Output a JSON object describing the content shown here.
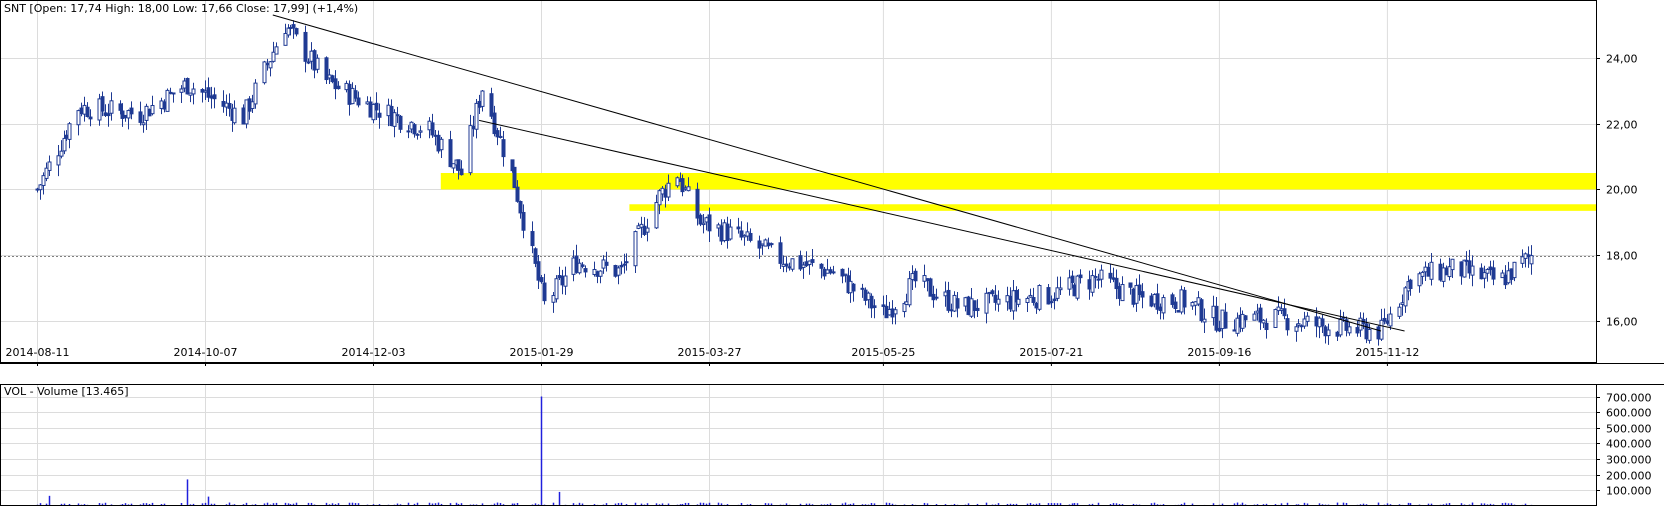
{
  "price_panel": {
    "header": "SNT [Open: 17,74  High: 18,00  Low: 17,66  Close: 17,99] (+1,4%)"
  },
  "volume_panel": {
    "header": "VOL - Volume [13.465]"
  },
  "colors": {
    "candle": "#1f3a93",
    "volume": "#2020dd",
    "zone": "#ffff00",
    "trendline": "#000000",
    "grid": "#dcdcdc",
    "last_close_line": "#808080"
  },
  "chart_data": [
    {
      "type": "candlestick",
      "symbol": "SNT",
      "x_tick_labels": [
        "2014-08-11",
        "2014-10-07",
        "2014-12-03",
        "2015-01-29",
        "2015-03-27",
        "2015-05-25",
        "2015-07-21",
        "2015-09-16",
        "2015-11-12"
      ],
      "y_tick_labels": [
        "16,00",
        "18,00",
        "20,00",
        "22,00",
        "24,00"
      ],
      "ylim": [
        15.0,
        26.0
      ],
      "grid": true,
      "last_close": 17.99,
      "last_bar": {
        "open": 17.74,
        "high": 18.0,
        "low": 17.66,
        "close": 17.99,
        "change": "+1,4%"
      },
      "approx_close_path": [
        {
          "date": "2014-08-11",
          "close": 20.0
        },
        {
          "date": "2014-08-25",
          "close": 22.5
        },
        {
          "date": "2014-09-15",
          "close": 22.3
        },
        {
          "date": "2014-10-01",
          "close": 23.2
        },
        {
          "date": "2014-10-20",
          "close": 22.2
        },
        {
          "date": "2014-11-03",
          "close": 25.0
        },
        {
          "date": "2014-11-17",
          "close": 23.3
        },
        {
          "date": "2014-12-03",
          "close": 22.5
        },
        {
          "date": "2014-12-22",
          "close": 21.8
        },
        {
          "date": "2015-01-02",
          "close": 20.5
        },
        {
          "date": "2015-01-09",
          "close": 23.1
        },
        {
          "date": "2015-01-20",
          "close": 20.2
        },
        {
          "date": "2015-01-30",
          "close": 16.5
        },
        {
          "date": "2015-02-10",
          "close": 17.8
        },
        {
          "date": "2015-02-25",
          "close": 17.5
        },
        {
          "date": "2015-03-10",
          "close": 19.8
        },
        {
          "date": "2015-03-16",
          "close": 20.5
        },
        {
          "date": "2015-03-24",
          "close": 19.0
        },
        {
          "date": "2015-04-05",
          "close": 18.6
        },
        {
          "date": "2015-04-20",
          "close": 17.9
        },
        {
          "date": "2015-05-08",
          "close": 17.5
        },
        {
          "date": "2015-05-25",
          "close": 16.2
        },
        {
          "date": "2015-06-05",
          "close": 17.2
        },
        {
          "date": "2015-06-20",
          "close": 16.4
        },
        {
          "date": "2015-07-05",
          "close": 16.6
        },
        {
          "date": "2015-07-21",
          "close": 16.8
        },
        {
          "date": "2015-08-05",
          "close": 17.3
        },
        {
          "date": "2015-08-20",
          "close": 16.7
        },
        {
          "date": "2015-09-05",
          "close": 16.6
        },
        {
          "date": "2015-09-16",
          "close": 16.0
        },
        {
          "date": "2015-10-05",
          "close": 16.1
        },
        {
          "date": "2015-10-25",
          "close": 15.8
        },
        {
          "date": "2015-11-10",
          "close": 15.7
        },
        {
          "date": "2015-11-20",
          "close": 17.3
        },
        {
          "date": "2015-12-05",
          "close": 17.6
        },
        {
          "date": "2015-12-20",
          "close": 17.2
        },
        {
          "date": "2015-12-31",
          "close": 17.99
        }
      ],
      "trendlines": [
        {
          "from": {
            "date": "2014-10-30",
            "price": 25.3
          },
          "to": {
            "date": "2015-11-10",
            "price": 15.7
          }
        },
        {
          "from": {
            "date": "2015-01-08",
            "price": 22.1
          },
          "to": {
            "date": "2015-11-18",
            "price": 15.7
          }
        }
      ],
      "zones": [
        {
          "from_date": "2014-12-26",
          "price_low": 20.0,
          "price_high": 20.5
        },
        {
          "from_date": "2015-02-28",
          "price_low": 19.35,
          "price_high": 19.55
        }
      ]
    },
    {
      "type": "bar",
      "name": "Volume",
      "y_tick_labels": [
        "100.000",
        "200.000",
        "300.000",
        "400.000",
        "500.000",
        "600.000",
        "700.000"
      ],
      "ylim": [
        0,
        780000
      ],
      "grid": true,
      "notable_spikes": [
        {
          "date": "2014-08-15",
          "value": 65000
        },
        {
          "date": "2014-10-01",
          "value": 170000
        },
        {
          "date": "2014-10-08",
          "value": 60000
        },
        {
          "date": "2015-01-29",
          "value": 700000
        },
        {
          "date": "2015-02-04",
          "value": 90000
        },
        {
          "date": "2015-07-25",
          "value": 60000
        }
      ],
      "typical_value": 13000
    }
  ]
}
